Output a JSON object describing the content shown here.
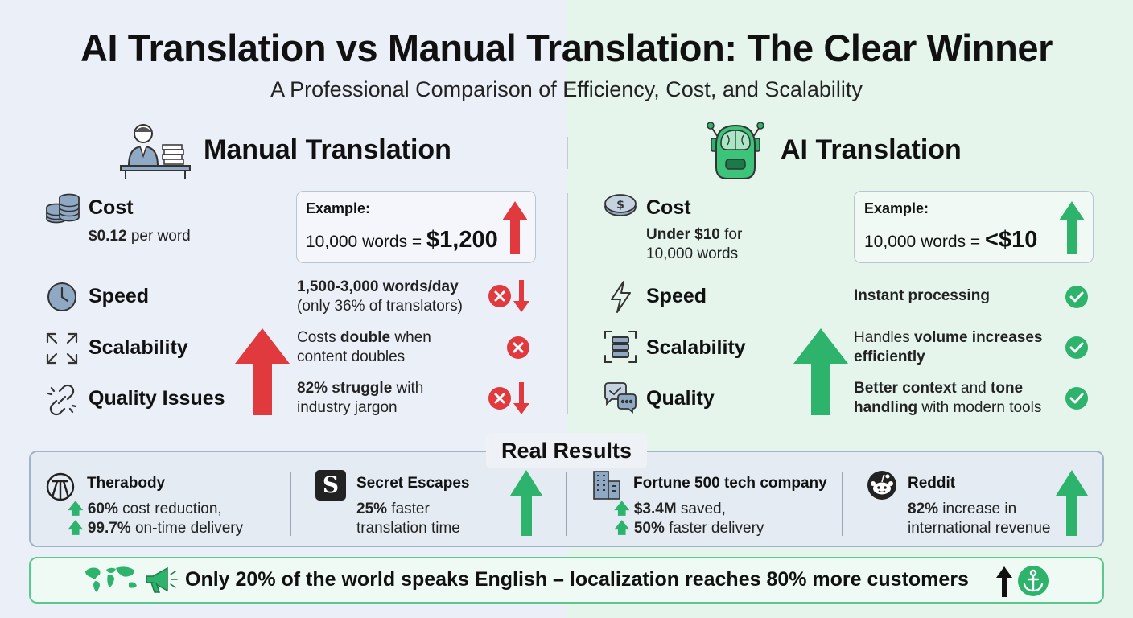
{
  "title": "AI Translation vs Manual Translation: The Clear Winner",
  "subtitle": "A Professional Comparison of Efficiency, Cost, and Scalability",
  "colors": {
    "red": "#e0393e",
    "green": "#2db36b",
    "left_bg": "#ebeff7",
    "right_bg": "#e6f5ec"
  },
  "manual": {
    "heading": "Manual Translation",
    "cost": {
      "label": "Cost",
      "price_bold": "$0.12",
      "price_rest": " per word"
    },
    "example": {
      "label": "Example:",
      "words": "10,000 words = ",
      "amount": "$1,200"
    },
    "speed": {
      "label": "Speed",
      "line1": "1,500-3,000 words/day",
      "line2": "(only 36% of translators)"
    },
    "scalability": {
      "label": "Scalability",
      "pre": "Costs ",
      "bold": "double",
      "post": " when",
      "line2": "content doubles"
    },
    "quality": {
      "label": "Quality Issues",
      "bold": "82% struggle",
      "post": " with",
      "line2": "industry jargon"
    }
  },
  "ai": {
    "heading": "AI Translation",
    "cost": {
      "label": "Cost",
      "bold": "Under $10",
      "post": " for",
      "line2": "10,000 words"
    },
    "example": {
      "label": "Example:",
      "words": "10,000 words = ",
      "amount": "<$10"
    },
    "speed": {
      "label": "Speed",
      "text": "Instant processing"
    },
    "scalability": {
      "label": "Scalability",
      "pre": "Handles ",
      "bold": "volume increases",
      "line2": "efficiently"
    },
    "quality": {
      "label": "Quality",
      "bold1": "Better context",
      "mid": " and ",
      "bold2": "tone",
      "bold3": "handling",
      "post": " with modern tools"
    }
  },
  "results": {
    "title": "Real Results",
    "cases": [
      {
        "name": "Therabody",
        "l1_bold": "60%",
        "l1": " cost reduction,",
        "l2_bold": "99.7%",
        "l2": " on-time delivery"
      },
      {
        "name": "Secret Escapes",
        "l1_bold": "25%",
        "l1": " faster",
        "l2": "translation time"
      },
      {
        "name": "Fortune 500 tech company",
        "l1_bold": "$3.4M",
        "l1": " saved,",
        "l2_bold": "50%",
        "l2": " faster delivery"
      },
      {
        "name": "Reddit",
        "l1_bold": "82%",
        "l1": " increase in",
        "l2": "international revenue"
      }
    ]
  },
  "footer": {
    "text": "Only 20% of the world speaks English – localization reaches 80% more customers"
  }
}
